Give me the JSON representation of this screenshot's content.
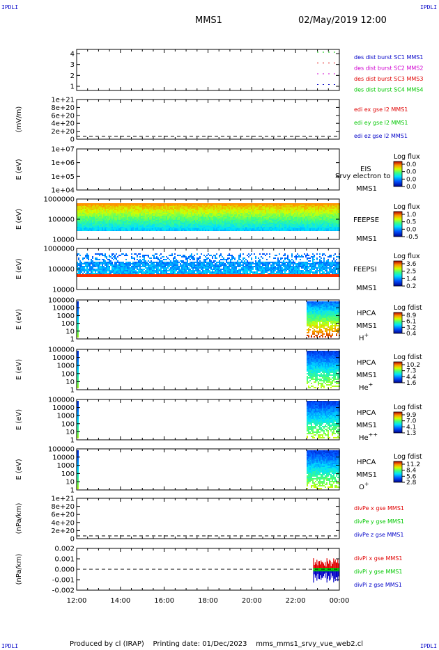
{
  "header": {
    "corner_tl": "IPDLI",
    "corner_tr": "IPDLI",
    "corner_bl": "IPDLI",
    "corner_br": "IPDLI",
    "mission": "MMS1",
    "datetime": "02/May/2019 12:00"
  },
  "footer": {
    "text": "Produced by cl (IRAP)    Printing date: 01/Dec/2023    mms_mms1_srvy_vue_web2.cl"
  },
  "colors": {
    "red": "#e00000",
    "green": "#00c800",
    "blue": "#0000c8",
    "magenta": "#d000d0"
  },
  "chart_data": {
    "type": "line",
    "x_ticks": [
      "12:00",
      "14:00",
      "16:00",
      "18:00",
      "20:00",
      "22:00",
      "00:00"
    ],
    "panels": [
      {
        "id": "burst",
        "ylabel": "",
        "yticks": [
          "4",
          "3",
          "2",
          "1"
        ],
        "legend": [
          {
            "text": "des dist burst SC1 MMS1",
            "color": "blue"
          },
          {
            "text": "des dist burst SC2 MMS2",
            "color": "magenta"
          },
          {
            "text": "des dist burst SC3 MMS3",
            "color": "red"
          },
          {
            "text": "des dist burst SC4 MMS4",
            "color": "green"
          }
        ]
      },
      {
        "id": "edi",
        "ylabel": "(mV/m)",
        "yticks": [
          "1e+21",
          "8e+20",
          "6e+20",
          "4e+20",
          "2e+20",
          "0"
        ],
        "legend": [
          {
            "text": "edi ex gse l2 MMS1",
            "color": "red"
          },
          {
            "text": "edi ey gse l2 MMS1",
            "color": "green"
          },
          {
            "text": "edi ez gse l2 MMS1",
            "color": "blue"
          }
        ]
      },
      {
        "id": "eis",
        "ylabel": "E (eV)",
        "yticks": [
          "1e+07",
          "1e+06",
          "1e+05",
          "1e+04"
        ],
        "instrument": [
          "EIS",
          "MMS1"
        ],
        "overlay": "Srvy electron to",
        "cbar_title": "Log flux",
        "cbar_ticks": [
          "0.0",
          "0.0",
          "0.0",
          "0.0"
        ]
      },
      {
        "id": "feepse",
        "ylabel": "E (eV)",
        "yticks": [
          "1000000",
          "100000",
          "10000"
        ],
        "instrument": [
          "FEEPSE",
          "MMS1"
        ],
        "cbar_title": "Log flux",
        "cbar_ticks": [
          "1.0",
          "0.5",
          "0.0",
          "-0.5"
        ]
      },
      {
        "id": "feepsi",
        "ylabel": "E (eV)",
        "yticks": [
          "1000000",
          "100000",
          "10000"
        ],
        "instrument": [
          "FEEPSI",
          "MMS1"
        ],
        "cbar_title": "Log flux",
        "cbar_ticks": [
          "3.6",
          "2.5",
          "1.4",
          "0.2"
        ]
      },
      {
        "id": "hpca_h",
        "ylabel": "E (eV)",
        "yticks": [
          "100000",
          "10000",
          "1000",
          "100",
          "10",
          "1"
        ],
        "instrument": [
          "HPCA",
          "MMS1",
          "H+"
        ],
        "cbar_title": "Log fdist",
        "cbar_ticks": [
          "8.9",
          "6.1",
          "3.2",
          "0.4"
        ]
      },
      {
        "id": "hpca_he",
        "ylabel": "E (eV)",
        "yticks": [
          "100000",
          "10000",
          "1000",
          "100",
          "10",
          "1"
        ],
        "instrument": [
          "HPCA",
          "MMS1",
          "He+"
        ],
        "cbar_title": "Log fdist",
        "cbar_ticks": [
          "10.2",
          "7.3",
          "4.4",
          "1.6"
        ]
      },
      {
        "id": "hpca_hepp",
        "ylabel": "E (eV)",
        "yticks": [
          "100000",
          "10000",
          "1000",
          "100",
          "10",
          "1"
        ],
        "instrument": [
          "HPCA",
          "MMS1",
          "He++"
        ],
        "cbar_title": "Log fdist",
        "cbar_ticks": [
          "9.9",
          "7.0",
          "4.1",
          "1.3"
        ]
      },
      {
        "id": "hpca_o",
        "ylabel": "E (eV)",
        "yticks": [
          "100000",
          "10000",
          "1000",
          "100",
          "10",
          "1"
        ],
        "instrument": [
          "HPCA",
          "MMS1",
          "O+"
        ],
        "cbar_title": "Log fdist",
        "cbar_ticks": [
          "11.2",
          "8.4",
          "5.6",
          "2.8"
        ]
      },
      {
        "id": "divpe",
        "ylabel": "(nPa/km)",
        "yticks": [
          "1e+21",
          "8e+20",
          "6e+20",
          "4e+20",
          "2e+20",
          "0"
        ],
        "legend": [
          {
            "text": "divPe x gse MMS1",
            "color": "red"
          },
          {
            "text": "divPe y gse MMS1",
            "color": "green"
          },
          {
            "text": "divPe z gse MMS1",
            "color": "blue"
          }
        ]
      },
      {
        "id": "divpi",
        "ylabel": "(nPa/km)",
        "yticks": [
          "0.002",
          "0.001",
          "0.000",
          "-0.001",
          "-0.002"
        ],
        "legend": [
          {
            "text": "divPi x gse MMS1",
            "color": "red"
          },
          {
            "text": "divPi y gse MMS1",
            "color": "green"
          },
          {
            "text": "divPi z gse MMS1",
            "color": "blue"
          }
        ]
      }
    ]
  }
}
